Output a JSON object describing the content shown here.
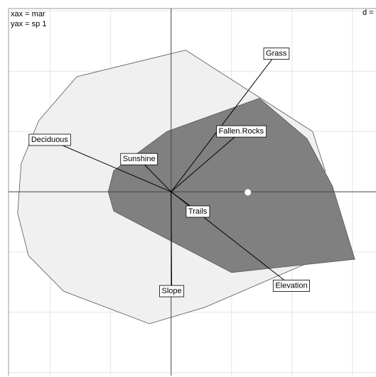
{
  "chart_data": {
    "type": "biplot",
    "annotations": [
      "xax = mar",
      "yax = sp 1",
      "d ="
    ],
    "xlim": [
      -2.69,
      3.39
    ],
    "ylim": [
      -3.05,
      3.04
    ],
    "xgrid": [
      -2,
      -1,
      1,
      2,
      3
    ],
    "ygrid": [
      -3,
      -2,
      -1,
      1,
      2,
      3
    ],
    "grid": true,
    "hulls": [
      {
        "color": "#f0f0f0",
        "x": [
          0.24,
          -1.56,
          -2.19,
          -2.48,
          -2.54,
          -2.36,
          -1.78,
          -0.36,
          0.55,
          2.22,
          2.55,
          2.34
        ],
        "y": [
          2.35,
          1.91,
          1.18,
          0.47,
          -0.35,
          -1.06,
          -1.65,
          -2.19,
          -1.92,
          -1.2,
          0.35,
          1.0
        ]
      },
      {
        "color": "#808080",
        "x": [
          1.46,
          2.25,
          2.67,
          3.04,
          1.0,
          -0.95,
          -1.04,
          -0.95,
          -0.07
        ],
        "y": [
          1.55,
          0.88,
          0.09,
          -1.12,
          -1.34,
          -0.32,
          0,
          0.35,
          1.0
        ]
      }
    ],
    "arrows": [
      {
        "name": "Grass",
        "x": 1.74,
        "y": 2.29
      },
      {
        "name": "Fallen.Rocks",
        "x": 1.16,
        "y": 1.0
      },
      {
        "name": "Deciduous",
        "x": -2.01,
        "y": 0.86
      },
      {
        "name": "Sunshine",
        "x": -0.53,
        "y": 0.54
      },
      {
        "name": "Trails",
        "x": 0.44,
        "y": -0.33
      },
      {
        "name": "Elevation",
        "x": 1.99,
        "y": -1.56
      },
      {
        "name": "Slope",
        "x": 0.01,
        "y": -1.65
      }
    ],
    "points": {
      "x": [
        1.27
      ],
      "y": [
        -0.01
      ]
    }
  }
}
